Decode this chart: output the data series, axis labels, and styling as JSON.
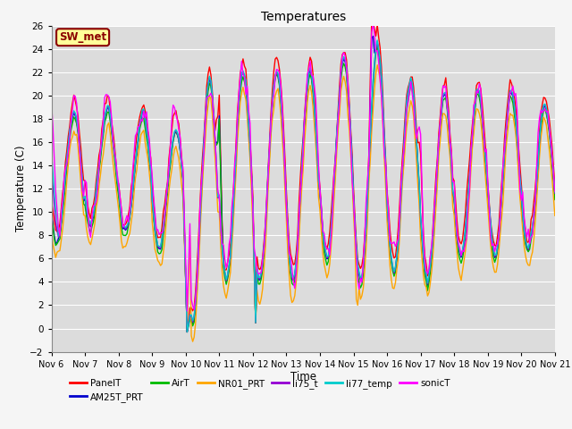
{
  "title": "Temperatures",
  "xlabel": "Time",
  "ylabel": "Temperature (C)",
  "ylim": [
    -2,
    26
  ],
  "xlim": [
    0,
    360
  ],
  "annotation": "SW_met",
  "annotation_color": "#8B0000",
  "annotation_bg": "#FFFF99",
  "bg_color": "#DCDCDC",
  "fig_color": "#F5F5F5",
  "series_order": [
    "PanelT",
    "AM25T_PRT",
    "AirT",
    "NR01_PRT",
    "li75_t",
    "li77_temp",
    "sonicT"
  ],
  "series": {
    "PanelT": {
      "color": "#FF0000",
      "lw": 1.0
    },
    "AM25T_PRT": {
      "color": "#0000CD",
      "lw": 1.0
    },
    "AirT": {
      "color": "#00BB00",
      "lw": 1.0
    },
    "NR01_PRT": {
      "color": "#FFA500",
      "lw": 1.0
    },
    "li75_t": {
      "color": "#9400D3",
      "lw": 1.0
    },
    "li77_temp": {
      "color": "#00CCCC",
      "lw": 1.0
    },
    "sonicT": {
      "color": "#FF00FF",
      "lw": 1.0
    }
  },
  "xtick_labels": [
    "Nov 6",
    "Nov 7",
    "Nov 8",
    "Nov 9",
    "Nov 10",
    "Nov 11",
    "Nov 12",
    "Nov 13",
    "Nov 14",
    "Nov 15",
    "Nov 16",
    "Nov 17",
    "Nov 18",
    "Nov 19",
    "Nov 20",
    "Nov 21"
  ],
  "xtick_positions": [
    0,
    24,
    48,
    72,
    96,
    120,
    144,
    168,
    192,
    216,
    240,
    264,
    288,
    312,
    336,
    360
  ],
  "ytick_positions": [
    -2,
    0,
    2,
    4,
    6,
    8,
    10,
    12,
    14,
    16,
    18,
    20,
    22,
    24,
    26
  ],
  "grid_color": "#FFFFFF",
  "legend_ncol": 6,
  "legend_fontsize": 8
}
